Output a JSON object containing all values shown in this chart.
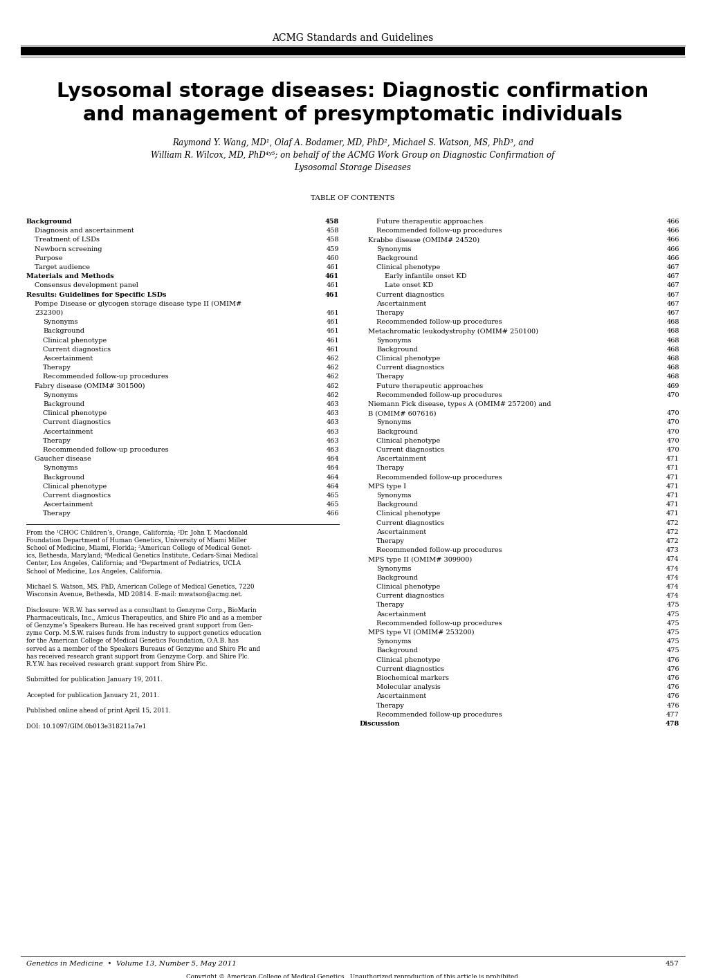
{
  "header": "ACMG Standards and Guidelines",
  "title_line1": "Lysosomal storage diseases: Diagnostic confirmation",
  "title_line2": "and management of presymptomatic individuals",
  "authors_line1": "Raymond Y. Wang, MD¹, Olaf A. Bodamer, MD, PhD², Michael S. Watson, MS, PhD³, and",
  "authors_line2": "William R. Wilcox, MD, PhD⁴ʸ⁵; on behalf of the ACMG Work Group on Diagnostic Confirmation of",
  "authors_line3": "Lysosomal Storage Diseases",
  "toc_header": "TABLE OF CONTENTS",
  "left_entries": [
    [
      "Background",
      "458",
      0
    ],
    [
      "Diagnosis and ascertainment",
      "458",
      1
    ],
    [
      "Treatment of LSDs",
      "458",
      1
    ],
    [
      "Newborn screening",
      "459",
      1
    ],
    [
      "Purpose",
      "460",
      1
    ],
    [
      "Target audience ",
      "461",
      1
    ],
    [
      "Materials and Methods",
      "461",
      0
    ],
    [
      "Consensus development panel",
      "461",
      1
    ],
    [
      "Results: Guidelines for Specific LSDs ",
      "461",
      0
    ],
    [
      "Pompe Disease or glycogen storage disease type II (OMIM#",
      "",
      1
    ],
    [
      "232300)",
      "461",
      1
    ],
    [
      "Synonyms",
      "461",
      2
    ],
    [
      "Background",
      "461",
      2
    ],
    [
      "Clinical phenotype",
      "461",
      2
    ],
    [
      "Current diagnostics",
      "461",
      2
    ],
    [
      "Ascertainment",
      "462",
      2
    ],
    [
      "Therapy",
      "462",
      2
    ],
    [
      "Recommended follow-up procedures",
      "462",
      2
    ],
    [
      "Fabry disease (OMIM# 301500)",
      "462",
      1
    ],
    [
      "Synonyms",
      "462",
      2
    ],
    [
      "Background",
      "463",
      2
    ],
    [
      "Clinical phenotype",
      "463",
      2
    ],
    [
      "Current diagnostics",
      "463",
      2
    ],
    [
      "Ascertainment",
      "463",
      2
    ],
    [
      "Therapy",
      "463",
      2
    ],
    [
      "Recommended follow-up procedures",
      "463",
      2
    ],
    [
      "Gaucher disease ",
      "464",
      1
    ],
    [
      "Synonyms",
      "464",
      2
    ],
    [
      "Background",
      "464",
      2
    ],
    [
      "Clinical phenotype",
      "464",
      2
    ],
    [
      "Current diagnostics ",
      "465",
      2
    ],
    [
      "Ascertainment",
      "465",
      2
    ],
    [
      "Therapy",
      "466",
      2
    ]
  ],
  "right_entries": [
    [
      "Future therapeutic approaches",
      "466",
      2
    ],
    [
      "Recommended follow-up procedures ",
      "466",
      2
    ],
    [
      "Krabbe disease (OMIM# 24520)",
      "466",
      1
    ],
    [
      "Synonyms",
      "466",
      2
    ],
    [
      "Background",
      "466",
      2
    ],
    [
      "Clinical phenotype",
      "467",
      2
    ],
    [
      "Early infantile onset KD",
      "467",
      3
    ],
    [
      "Late onset KD ",
      "467",
      3
    ],
    [
      "Current diagnostics ",
      "467",
      2
    ],
    [
      "Ascertainment",
      "467",
      2
    ],
    [
      "Therapy",
      "467",
      2
    ],
    [
      "Recommended follow-up procedures ",
      "468",
      2
    ],
    [
      "Metachromatic leukodystrophy (OMIM# 250100)",
      "468",
      1
    ],
    [
      "Synonyms",
      "468",
      2
    ],
    [
      "Background",
      "468",
      2
    ],
    [
      "Clinical phenotype",
      "468",
      2
    ],
    [
      "Current diagnostics ",
      "468",
      2
    ],
    [
      "Therapy",
      "468",
      2
    ],
    [
      "Future therapeutic approaches",
      "469",
      2
    ],
    [
      "Recommended follow-up procedures ",
      "470",
      2
    ],
    [
      "Niemann Pick disease, types A (OMIM# 257200) and",
      "",
      1
    ],
    [
      "B (OMIM# 607616) ",
      "470",
      1
    ],
    [
      "Synonyms",
      "470",
      2
    ],
    [
      "Background",
      "470",
      2
    ],
    [
      "Clinical phenotype",
      "470",
      2
    ],
    [
      "Current diagnostics ",
      "470",
      2
    ],
    [
      "Ascertainment",
      "471",
      2
    ],
    [
      "Therapy",
      "471",
      2
    ],
    [
      "Recommended follow-up procedures ",
      "471",
      2
    ],
    [
      "MPS type I ",
      "471",
      1
    ],
    [
      "Synonyms",
      "471",
      2
    ],
    [
      "Background",
      "471",
      2
    ],
    [
      "Clinical phenotype",
      "471",
      2
    ],
    [
      "Current diagnostics ",
      "472",
      2
    ],
    [
      "Ascertainment",
      "472",
      2
    ],
    [
      "Therapy",
      "472",
      2
    ],
    [
      "Recommended follow-up procedures ",
      "473",
      2
    ],
    [
      "MPS type II (OMIM# 309900) ",
      "474",
      1
    ],
    [
      "Synonyms",
      "474",
      2
    ],
    [
      "Background",
      "474",
      2
    ],
    [
      "Clinical phenotype",
      "474",
      2
    ],
    [
      "Current diagnostics ",
      "474",
      2
    ],
    [
      "Therapy",
      "475",
      2
    ],
    [
      "Ascertainment",
      "475",
      2
    ],
    [
      "Recommended follow-up procedures ",
      "475",
      2
    ],
    [
      "MPS type VI (OMIM# 253200) ",
      "475",
      1
    ],
    [
      "Synonyms",
      "475",
      2
    ],
    [
      "Background",
      "475",
      2
    ],
    [
      "Clinical phenotype",
      "476",
      2
    ],
    [
      "Current diagnostics ",
      "476",
      2
    ],
    [
      "Biochemical markers ",
      "476",
      2
    ],
    [
      "Molecular analysis ",
      "476",
      2
    ],
    [
      "Ascertainment",
      "476",
      2
    ],
    [
      "Therapy",
      "476",
      2
    ],
    [
      "Recommended follow-up procedures ",
      "477",
      2
    ],
    [
      "Discussion",
      "478",
      0
    ]
  ],
  "footnotes": [
    "From the ¹CHOC Children’s, Orange, California; ²Dr. John T. Macdonald",
    "Foundation Department of Human Genetics, University of Miami Miller",
    "School of Medicine, Miami, Florida; ³American College of Medical Genet-",
    "ics, Bethesda, Maryland; ⁴Medical Genetics Institute, Cedars-Sinai Medical",
    "Center, Los Angeles, California; and ⁵Department of Pediatrics, UCLA",
    "School of Medicine, Los Angeles, California.",
    "",
    "Michael S. Watson, MS, PhD, American College of Medical Genetics, 7220",
    "Wisconsin Avenue, Bethesda, MD 20814. E-mail: mwatson@acmg.net.",
    "",
    "Disclosure: W.R.W. has served as a consultant to Genzyme Corp., BioMarin",
    "Pharmaceuticals, Inc., Amicus Therapeutics, and Shire Plc and as a member",
    "of Genzyme’s Speakers Bureau. He has received grant support from Gen-",
    "zyme Corp. M.S.W. raises funds from industry to support genetics education",
    "for the American College of Medical Genetics Foundation, O.A.B. has",
    "served as a member of the Speakers Bureaus of Genzyme and Shire Plc and",
    "has received research grant support from Genzyme Corp. and Shire Plc.",
    "R.Y.W. has received research grant support from Shire Plc.",
    "",
    "Submitted for publication January 19, 2011.",
    "",
    "Accepted for publication January 21, 2011.",
    "",
    "Published online ahead of print April 15, 2011.",
    "",
    "DOI: 10.1097/GIM.0b013e318211a7e1"
  ],
  "bottom_left": "Genetics in Medicine  •  Volume 13, Number 5, May 2011",
  "bottom_right": "457",
  "bottom_note": "Copyright © American College of Medical Genetics.  Unauthorized reproduction of this article is prohibited."
}
